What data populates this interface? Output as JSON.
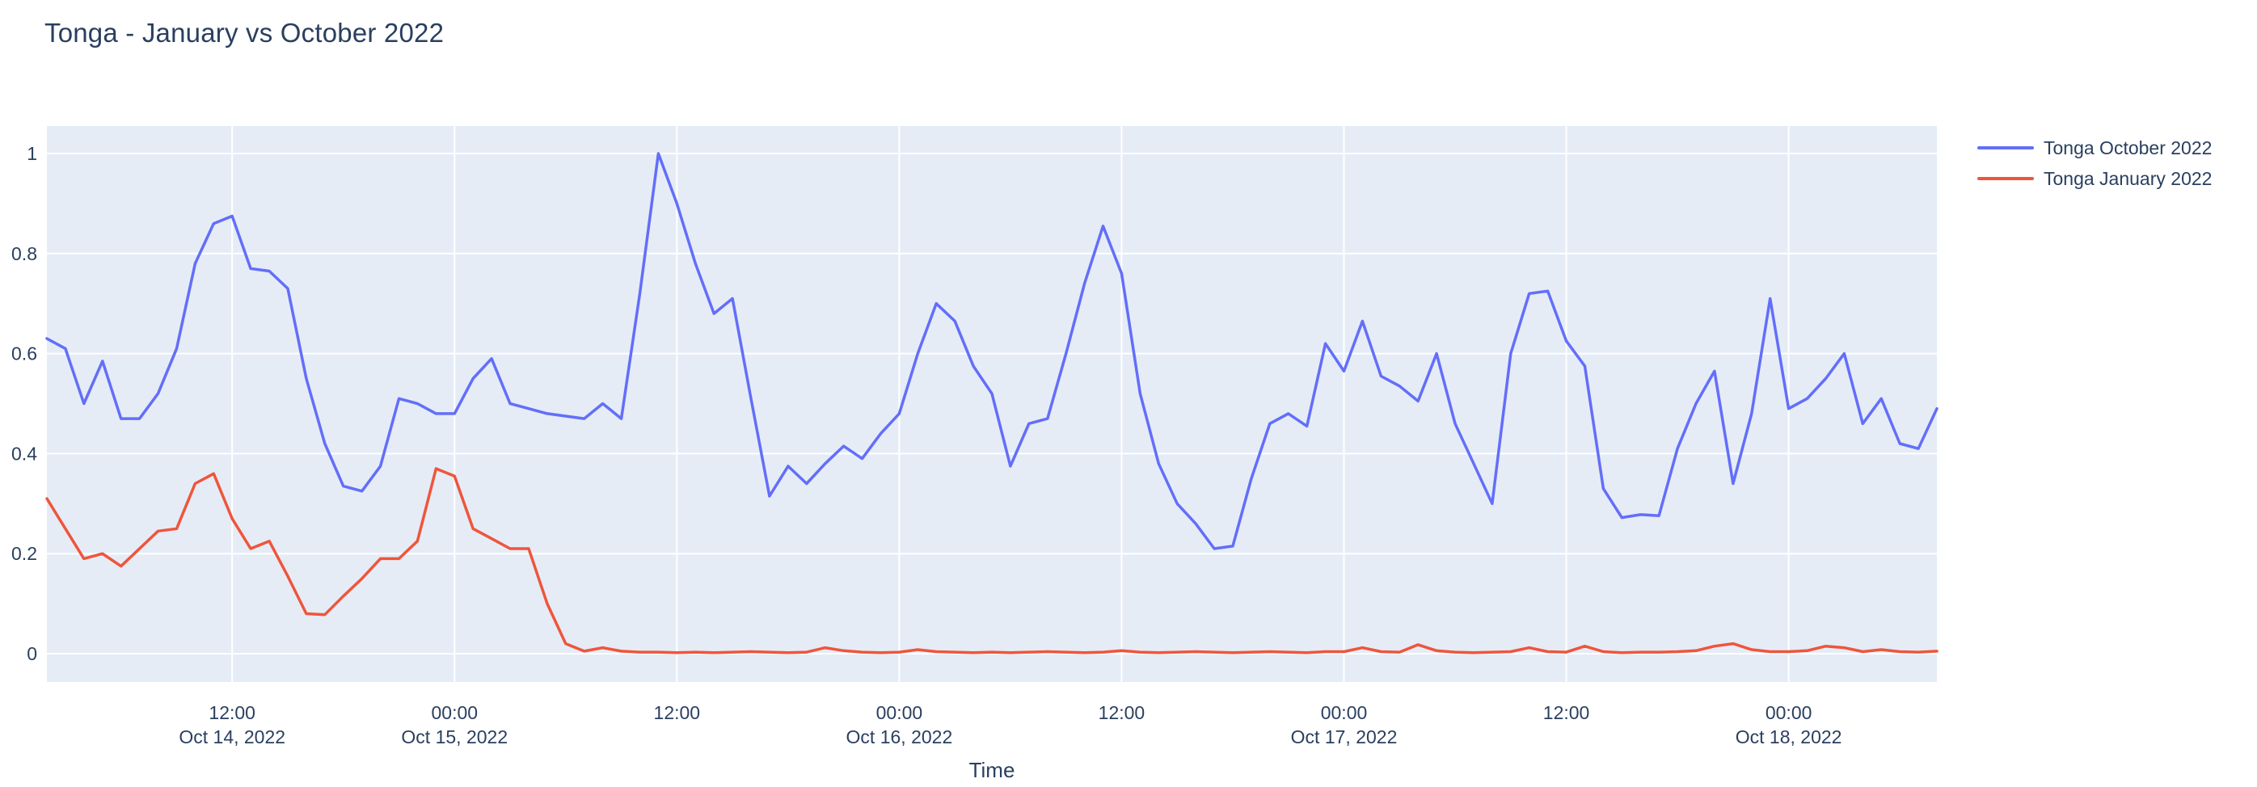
{
  "page": {
    "title": "Tonga - January vs October 2022"
  },
  "axis": {
    "x_title": "Time"
  },
  "legend": {
    "items": [
      {
        "label": "Tonga October 2022",
        "color": "#636efa"
      },
      {
        "label": "Tonga January 2022",
        "color": "#ef553b"
      }
    ]
  },
  "chart_data": {
    "type": "line",
    "title": "Tonga - January vs October 2022",
    "xlabel": "Time",
    "ylabel": "",
    "grid": true,
    "legend_position": "outside-top-right",
    "plot_bg_color": "#e5ecf6",
    "grid_color": "#ffffff",
    "text_color": "#2a3f5f",
    "ylim": [
      -0.057,
      1.056
    ],
    "y_ticks": [
      {
        "value": 0,
        "label": "0"
      },
      {
        "value": 0.2,
        "label": "0.2"
      },
      {
        "value": 0.4,
        "label": "0.4"
      },
      {
        "value": 0.6,
        "label": "0.6"
      },
      {
        "value": 0.8,
        "label": "0.8"
      },
      {
        "value": 1,
        "label": "1"
      }
    ],
    "x_start": "2022-10-14 02:00",
    "x_interval_hours": 1,
    "x_point_count": 103,
    "x_ticks": [
      {
        "index": 10,
        "time": "12:00",
        "date": "Oct 14, 2022"
      },
      {
        "index": 22,
        "time": "00:00",
        "date": "Oct 15, 2022"
      },
      {
        "index": 34,
        "time": "12:00",
        "date": ""
      },
      {
        "index": 46,
        "time": "00:00",
        "date": "Oct 16, 2022"
      },
      {
        "index": 58,
        "time": "12:00",
        "date": ""
      },
      {
        "index": 70,
        "time": "00:00",
        "date": "Oct 17, 2022"
      },
      {
        "index": 82,
        "time": "12:00",
        "date": ""
      },
      {
        "index": 94,
        "time": "00:00",
        "date": "Oct 18, 2022"
      }
    ],
    "series": [
      {
        "name": "Tonga October 2022",
        "color": "#636efa",
        "values": [
          0.63,
          0.61,
          0.5,
          0.585,
          0.47,
          0.47,
          0.52,
          0.61,
          0.78,
          0.86,
          0.875,
          0.77,
          0.765,
          0.73,
          0.55,
          0.42,
          0.335,
          0.325,
          0.375,
          0.51,
          0.5,
          0.48,
          0.48,
          0.55,
          0.59,
          0.5,
          0.49,
          0.48,
          0.475,
          0.47,
          0.5,
          0.47,
          0.72,
          1.0,
          0.9,
          0.78,
          0.68,
          0.71,
          0.51,
          0.315,
          0.375,
          0.34,
          0.38,
          0.415,
          0.39,
          0.44,
          0.48,
          0.6,
          0.7,
          0.665,
          0.575,
          0.52,
          0.375,
          0.46,
          0.47,
          0.6,
          0.74,
          0.855,
          0.76,
          0.52,
          0.38,
          0.3,
          0.26,
          0.21,
          0.215,
          0.35,
          0.46,
          0.48,
          0.455,
          0.62,
          0.565,
          0.665,
          0.555,
          0.535,
          0.505,
          0.6,
          0.46,
          0.38,
          0.3,
          0.6,
          0.72,
          0.725,
          0.625,
          0.575,
          0.33,
          0.272,
          0.278,
          0.276,
          0.41,
          0.5,
          0.565,
          0.34,
          0.48,
          0.71,
          0.49,
          0.51,
          0.55,
          0.6,
          0.46,
          0.51,
          0.42,
          0.41,
          0.49
        ]
      },
      {
        "name": "Tonga January 2022",
        "color": "#ef553b",
        "values": [
          0.31,
          0.25,
          0.19,
          0.2,
          0.175,
          0.21,
          0.245,
          0.25,
          0.34,
          0.36,
          0.27,
          0.21,
          0.225,
          0.155,
          0.08,
          0.078,
          0.115,
          0.15,
          0.19,
          0.19,
          0.225,
          0.37,
          0.355,
          0.25,
          0.23,
          0.21,
          0.21,
          0.1,
          0.02,
          0.005,
          0.012,
          0.005,
          0.003,
          0.003,
          0.002,
          0.003,
          0.002,
          0.003,
          0.004,
          0.003,
          0.002,
          0.003,
          0.012,
          0.006,
          0.003,
          0.002,
          0.003,
          0.008,
          0.004,
          0.003,
          0.002,
          0.003,
          0.002,
          0.003,
          0.004,
          0.003,
          0.002,
          0.003,
          0.006,
          0.003,
          0.002,
          0.003,
          0.004,
          0.003,
          0.002,
          0.003,
          0.004,
          0.003,
          0.002,
          0.004,
          0.004,
          0.012,
          0.004,
          0.003,
          0.018,
          0.006,
          0.003,
          0.002,
          0.003,
          0.004,
          0.012,
          0.004,
          0.003,
          0.015,
          0.004,
          0.002,
          0.003,
          0.003,
          0.004,
          0.006,
          0.015,
          0.02,
          0.008,
          0.004,
          0.004,
          0.006,
          0.015,
          0.012,
          0.004,
          0.008,
          0.004,
          0.003,
          0.005
        ]
      }
    ]
  }
}
